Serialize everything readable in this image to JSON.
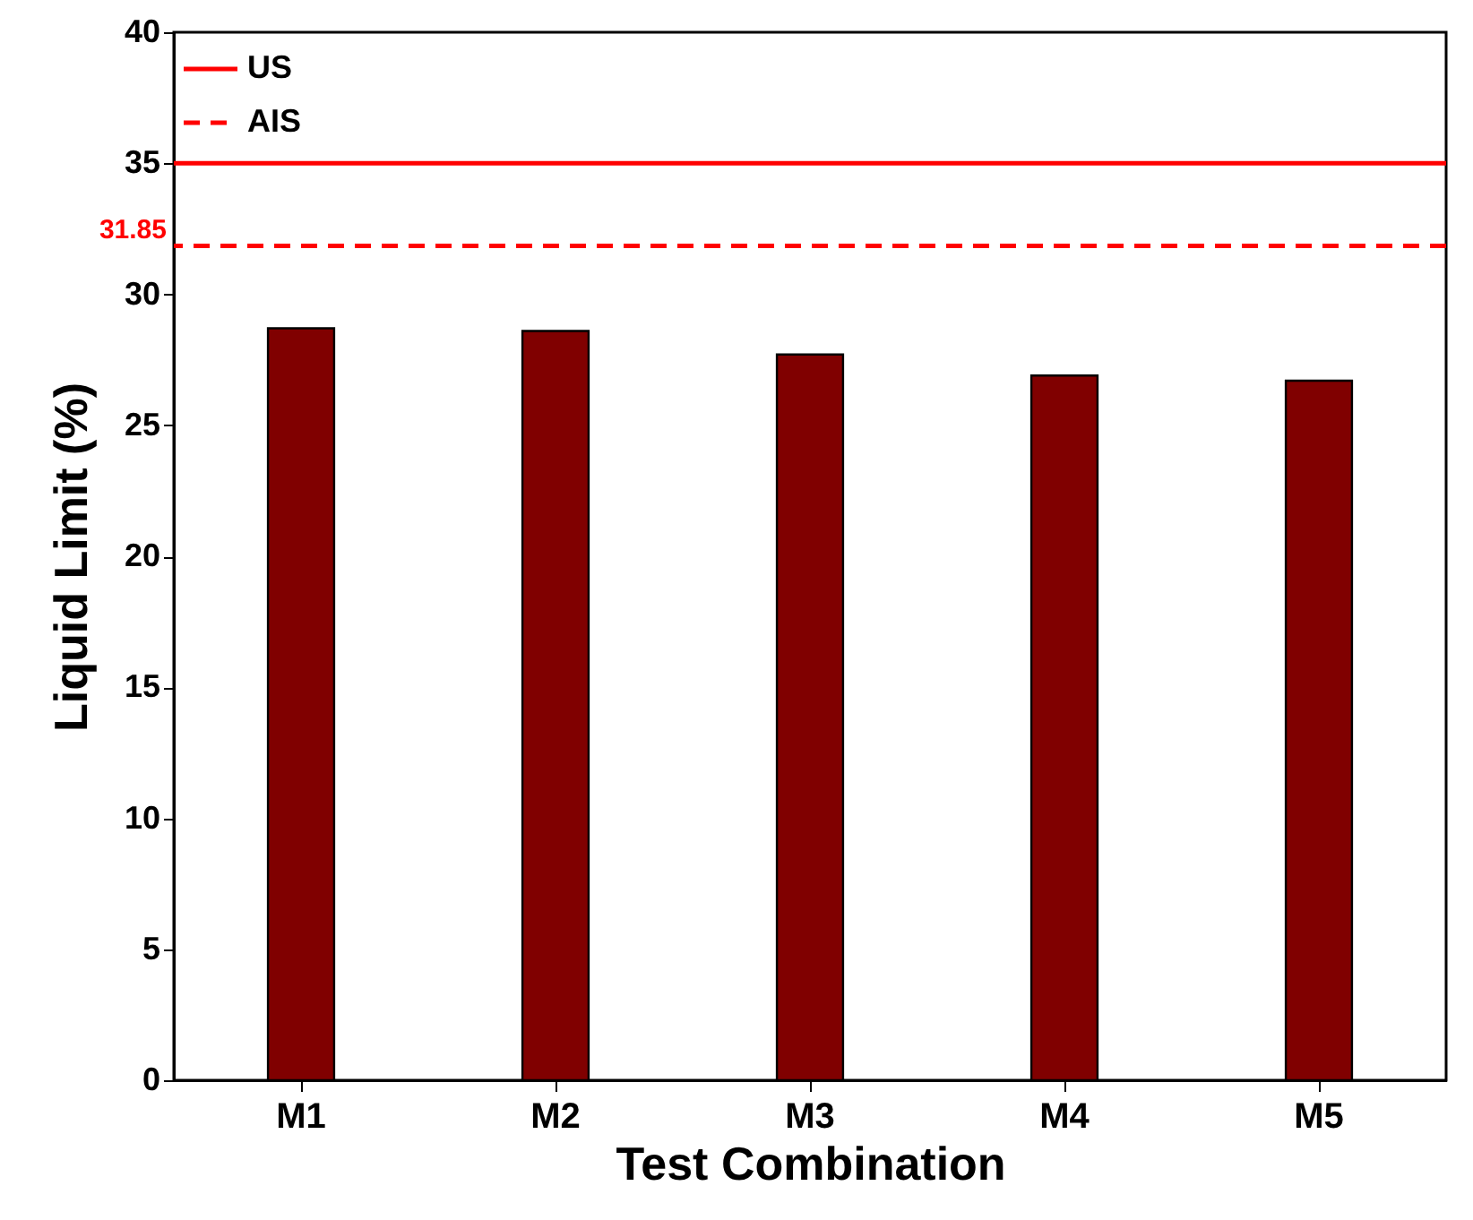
{
  "chart_data": {
    "type": "bar",
    "xlabel": "Test Combination",
    "ylabel": "Liquid Limit (%)",
    "categories": [
      "M1",
      "M2",
      "M3",
      "M4",
      "M5"
    ],
    "values": [
      28.7,
      28.6,
      27.7,
      26.9,
      26.7
    ],
    "color": "#800000",
    "ylim": [
      0,
      40
    ],
    "yticks": [
      0,
      5,
      10,
      15,
      20,
      25,
      30,
      35,
      40
    ],
    "ref_lines": [
      {
        "axis": "y",
        "value": 35,
        "label": "US",
        "color": "#ff0000",
        "line_style": "solid"
      },
      {
        "axis": "y",
        "value": 31.85,
        "label": "AIS",
        "color": "#ff0000",
        "line_style": "dashed"
      }
    ],
    "annotations": [
      "31.85"
    ],
    "legend": "top left",
    "grid": false
  }
}
